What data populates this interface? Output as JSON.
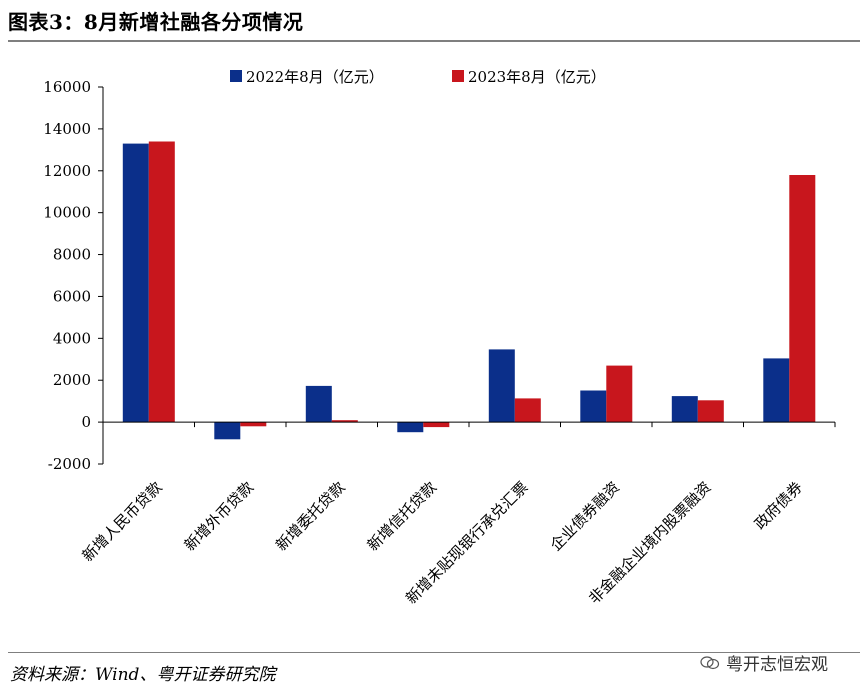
{
  "title": "图表3：8月新增社融各分项情况",
  "source": "资料来源：Wind、粤开证券研究院",
  "watermark": "粤开志恒宏观",
  "colors": {
    "series1": "#0b2f8a",
    "series2": "#c8161d",
    "rule": "#7f7f7f"
  },
  "chart_data": {
    "type": "bar",
    "categories": [
      "新增人民币贷款",
      "新增外币贷款",
      "新增委托贷款",
      "新增信托贷款",
      "新增未贴现银行承兑汇票",
      "企业债券融资",
      "非金融企业境内股票融资",
      "政府债券"
    ],
    "series": [
      {
        "name": "2022年8月（亿元）",
        "values": [
          13300,
          -820,
          1730,
          -480,
          3470,
          1510,
          1240,
          3040
        ]
      },
      {
        "name": "2023年8月（亿元）",
        "values": [
          13400,
          -200,
          90,
          -240,
          1130,
          2700,
          1040,
          11800
        ]
      }
    ],
    "ylim": [
      -2000,
      16000
    ],
    "yticks": [
      "16000",
      "14000",
      "12000",
      "10000",
      "8000",
      "6000",
      "4000",
      "2000",
      "0",
      "-2000"
    ],
    "xlabel": "",
    "ylabel": "",
    "grid": false,
    "legend_position": "top"
  }
}
